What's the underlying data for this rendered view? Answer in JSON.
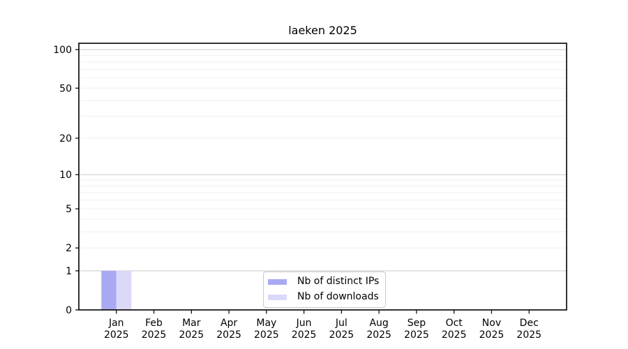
{
  "chart_data": {
    "type": "bar",
    "title": "laeken 2025",
    "categories": [
      "Jan",
      "Feb",
      "Mar",
      "Apr",
      "May",
      "Jun",
      "Jul",
      "Aug",
      "Sep",
      "Oct",
      "Nov",
      "Dec"
    ],
    "category_year": "2025",
    "series": [
      {
        "name": "Nb of distinct IPs",
        "color": "#a9a9f3",
        "values": [
          1,
          0,
          0,
          0,
          0,
          0,
          0,
          0,
          0,
          0,
          0,
          0
        ]
      },
      {
        "name": "Nb of downloads",
        "color": "#dad9f8",
        "values": [
          1,
          0,
          0,
          0,
          0,
          0,
          0,
          0,
          0,
          0,
          0,
          0
        ]
      }
    ],
    "yscale": "log1p",
    "ylim": [
      0,
      112
    ],
    "yticks": [
      0,
      1,
      2,
      5,
      10,
      20,
      50,
      100
    ],
    "yticks_minor": [
      3,
      4,
      6,
      7,
      8,
      9,
      30,
      40,
      60,
      70,
      80,
      90
    ],
    "grid_major_at": [
      1,
      10,
      100
    ],
    "grid_minor_at": [
      2,
      3,
      4,
      5,
      6,
      7,
      8,
      9,
      20,
      30,
      40,
      50,
      60,
      70,
      80,
      90
    ],
    "xlabel": "",
    "ylabel": "",
    "legend_labels": [
      "Nb of distinct IPs",
      "Nb of downloads"
    ]
  },
  "style_colors": {
    "grid_major": "#c9c9c9",
    "grid_minor": "#efefef",
    "spine": "#000000",
    "tick_text": "#000000"
  }
}
